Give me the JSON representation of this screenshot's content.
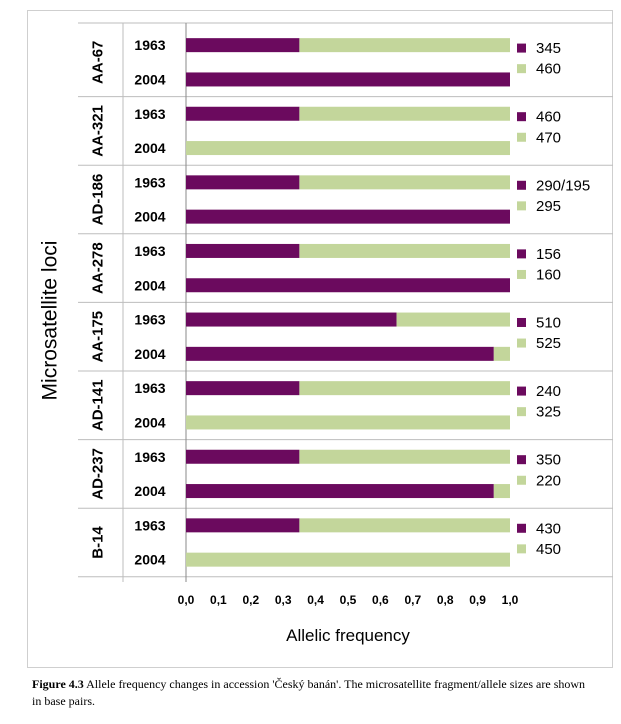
{
  "chart_data": {
    "type": "bar",
    "orientation": "horizontal",
    "stacked": true,
    "ylabel": "Microsatellite loci",
    "xlabel": "Allelic frequency",
    "xlim": [
      0,
      1
    ],
    "xticks": [
      "0,0",
      "0,1",
      "0,2",
      "0,3",
      "0,4",
      "0,5",
      "0,6",
      "0,7",
      "0,8",
      "0,9",
      "1,0"
    ],
    "colors": {
      "allele_1": "#6b0a5e",
      "allele_2": "#c3d69b"
    },
    "groups": [
      {
        "locus": "AA-67",
        "alleles": [
          "345",
          "460"
        ],
        "rows": [
          {
            "year": "1963",
            "value": 0.35
          },
          {
            "year": "2004",
            "value": 1.0
          }
        ]
      },
      {
        "locus": "AA-321",
        "alleles": [
          "460",
          "470"
        ],
        "rows": [
          {
            "year": "1963",
            "value": 0.35
          },
          {
            "year": "2004",
            "value": 0.0
          }
        ]
      },
      {
        "locus": "AD-186",
        "alleles": [
          "290/195",
          "295"
        ],
        "rows": [
          {
            "year": "1963",
            "value": 0.35
          },
          {
            "year": "2004",
            "value": 1.0
          }
        ]
      },
      {
        "locus": "AA-278",
        "alleles": [
          "156",
          "160"
        ],
        "rows": [
          {
            "year": "1963",
            "value": 0.35
          },
          {
            "year": "2004",
            "value": 1.0
          }
        ]
      },
      {
        "locus": "AA-175",
        "alleles": [
          "510",
          "525"
        ],
        "rows": [
          {
            "year": "1963",
            "value": 0.65
          },
          {
            "year": "2004",
            "value": 0.95
          }
        ]
      },
      {
        "locus": "AD-141",
        "alleles": [
          "240",
          "325"
        ],
        "rows": [
          {
            "year": "1963",
            "value": 0.35
          },
          {
            "year": "2004",
            "value": 0.0
          }
        ]
      },
      {
        "locus": "AD-237",
        "alleles": [
          "350",
          "220"
        ],
        "rows": [
          {
            "year": "1963",
            "value": 0.35
          },
          {
            "year": "2004",
            "value": 0.95
          }
        ]
      },
      {
        "locus": "B-14",
        "alleles": [
          "430",
          "450"
        ],
        "rows": [
          {
            "year": "1963",
            "value": 0.35
          },
          {
            "year": "2004",
            "value": 0.0
          }
        ]
      }
    ]
  },
  "caption": {
    "label": "Figure 4.3",
    "text": " Allele frequency changes in accession 'Český banán'. The microsatellite fragment/allele sizes are shown in base pairs."
  }
}
